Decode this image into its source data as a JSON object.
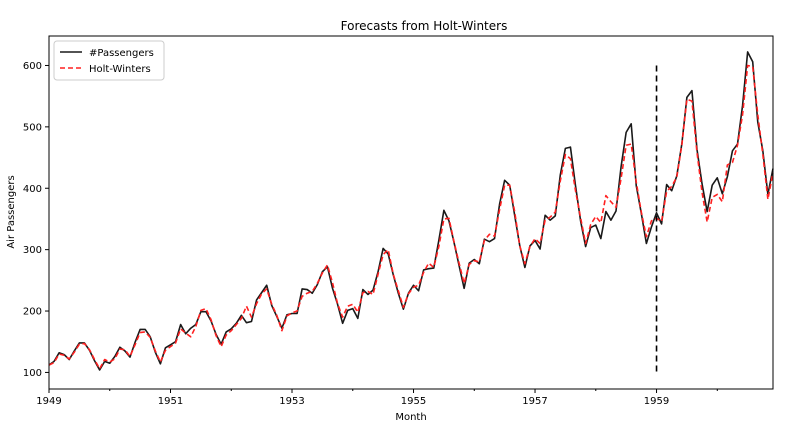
{
  "chart_data": {
    "type": "line",
    "title": "Forecasts from Holt-Winters",
    "xlabel": "Month",
    "ylabel": "Air Passengers",
    "xlim": [
      1949,
      1960.917
    ],
    "ylim": [
      73,
      648
    ],
    "xticks": [
      1949,
      1951,
      1953,
      1955,
      1957,
      1959
    ],
    "yticks": [
      100,
      200,
      300,
      400,
      500,
      600
    ],
    "grid": false,
    "legend_position": "top-left",
    "vline": {
      "x": 1959,
      "y_range": [
        100,
        600
      ],
      "style": "dashed",
      "color": "#000000"
    },
    "x_start": 1949,
    "x_step": 0.08333,
    "series": [
      {
        "name": "#Passengers",
        "color": "#1a1a1a",
        "style": "solid",
        "values": [
          112,
          118,
          132,
          129,
          121,
          135,
          148,
          148,
          136,
          119,
          104,
          118,
          115,
          126,
          141,
          135,
          125,
          149,
          170,
          170,
          158,
          133,
          114,
          140,
          145,
          150,
          178,
          163,
          172,
          178,
          199,
          199,
          184,
          162,
          146,
          166,
          171,
          180,
          193,
          181,
          183,
          218,
          230,
          242,
          209,
          191,
          172,
          194,
          196,
          196,
          236,
          235,
          229,
          243,
          264,
          272,
          237,
          211,
          180,
          201,
          204,
          188,
          235,
          227,
          234,
          264,
          302,
          293,
          259,
          229,
          203,
          229,
          242,
          233,
          267,
          269,
          270,
          315,
          364,
          347,
          312,
          274,
          237,
          278,
          284,
          277,
          317,
          313,
          318,
          374,
          413,
          405,
          355,
          306,
          271,
          306,
          315,
          301,
          356,
          348,
          355,
          422,
          465,
          467,
          404,
          347,
          305,
          336,
          340,
          318,
          362,
          348,
          363,
          435,
          491,
          505,
          404,
          359,
          310,
          337,
          360,
          342,
          406,
          396,
          420,
          472,
          548,
          559,
          463,
          407,
          362,
          405,
          417,
          391,
          419,
          461,
          472,
          535,
          622,
          606,
          508,
          461,
          390,
          432
        ]
      },
      {
        "name": "Holt-Winters",
        "color": "#ff2020",
        "style": "dashed",
        "values": [
          112,
          116,
          130,
          128,
          122,
          133,
          146,
          147,
          137,
          121,
          106,
          121,
          117,
          122,
          138,
          137,
          126,
          145,
          165,
          166,
          157,
          135,
          117,
          136,
          142,
          148,
          171,
          164,
          158,
          175,
          201,
          204,
          186,
          160,
          142,
          161,
          168,
          178,
          188,
          208,
          190,
          212,
          228,
          236,
          211,
          193,
          168,
          192,
          197,
          200,
          224,
          229,
          232,
          245,
          262,
          275,
          246,
          212,
          190,
          208,
          211,
          198,
          230,
          232,
          227,
          260,
          292,
          300,
          260,
          233,
          206,
          228,
          239,
          242,
          263,
          278,
          271,
          305,
          350,
          351,
          313,
          278,
          245,
          276,
          282,
          280,
          315,
          325,
          322,
          365,
          405,
          405,
          361,
          306,
          277,
          305,
          318,
          310,
          348,
          353,
          361,
          412,
          455,
          448,
          396,
          352,
          310,
          341,
          354,
          344,
          388,
          378,
          369,
          416,
          470,
          472,
          410,
          361,
          321,
          347,
          351,
          346,
          395,
          403,
          418,
          470,
          545,
          542,
          458,
          393,
          345,
          385,
          390,
          378,
          438,
          442,
          470,
          520,
          600,
          598,
          520,
          455,
          382,
          425
        ]
      }
    ]
  }
}
